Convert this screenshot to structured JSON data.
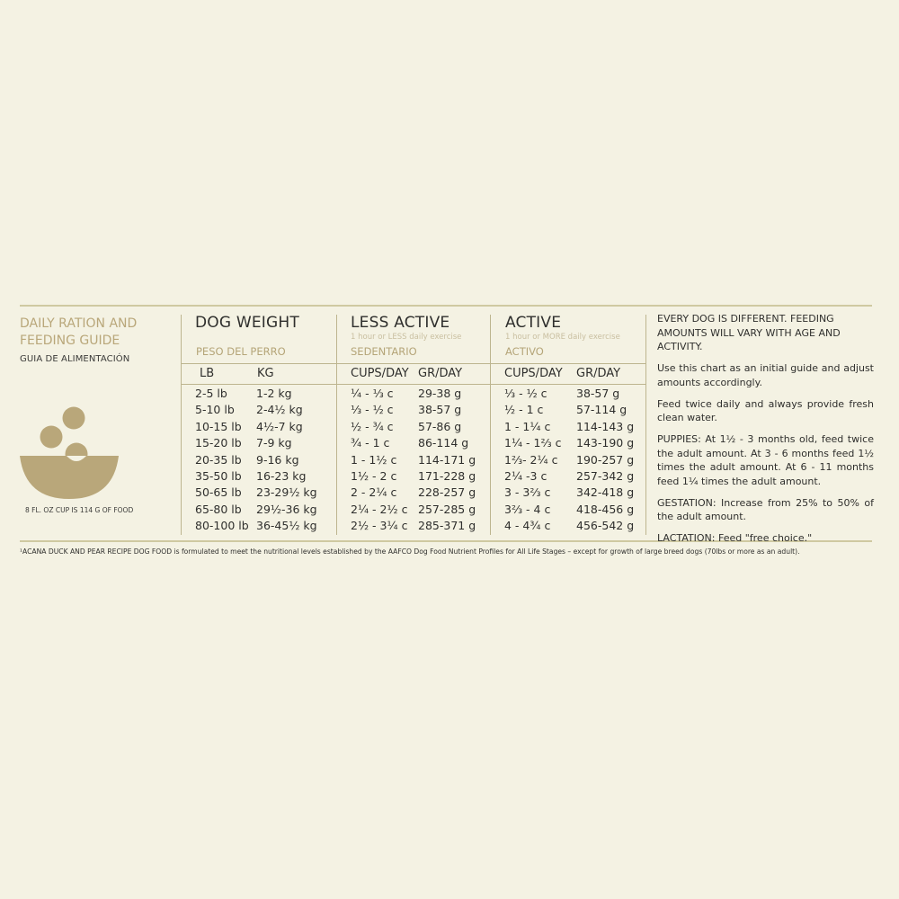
{
  "guide": {
    "title": "DAILY RATION AND FEEDING GUIDE",
    "subtitle": "GUIA DE ALIMENTACIÓN",
    "cup_note": "8 FL. OZ CUP IS 114 G OF FOOD",
    "bowl_icon": "food-bowl-icon",
    "accent_color": "#b9a77a"
  },
  "table": {
    "dog_weight": {
      "title": "DOG WEIGHT",
      "es": "PESO DEL PERRO",
      "unit_lb": "LB",
      "unit_kg": "KG"
    },
    "less_active": {
      "title": "LESS ACTIVE",
      "note": "1 hour or LESS daily exercise",
      "es": "SEDENTARIO",
      "unit_cups": "CUPS/DAY",
      "unit_gr": "GR/DAY"
    },
    "active": {
      "title": "ACTIVE",
      "note": "1 hour or MORE daily exercise",
      "es": "ACTIVO",
      "unit_cups": "CUPS/DAY",
      "unit_gr": "GR/DAY"
    },
    "rows": [
      {
        "lb": "2-5 lb",
        "kg": "1-2 kg",
        "la_cups": "¼ - ⅓ c",
        "la_gr": "29-38 g",
        "a_cups": "⅓ - ½ c",
        "a_gr": "38-57 g"
      },
      {
        "lb": "5-10 lb",
        "kg": "2-4½ kg",
        "la_cups": "⅓ - ½ c",
        "la_gr": "38-57 g",
        "a_cups": "½ - 1 c",
        "a_gr": "57-114 g"
      },
      {
        "lb": "10-15 lb",
        "kg": "4½-7 kg",
        "la_cups": "½ - ¾ c",
        "la_gr": "57-86 g",
        "a_cups": "1 - 1¼ c",
        "a_gr": "114-143 g"
      },
      {
        "lb": "15-20 lb",
        "kg": "7-9 kg",
        "la_cups": "¾ - 1 c",
        "la_gr": "86-114 g",
        "a_cups": "1¼ - 1⅔ c",
        "a_gr": "143-190 g"
      },
      {
        "lb": "20-35 lb",
        "kg": "9-16 kg",
        "la_cups": "1 - 1½ c",
        "la_gr": "114-171 g",
        "a_cups": "1⅔- 2¼ c",
        "a_gr": "190-257 g"
      },
      {
        "lb": "35-50 lb",
        "kg": "16-23 kg",
        "la_cups": "1½ - 2 c",
        "la_gr": "171-228 g",
        "a_cups": "2¼ -3 c",
        "a_gr": "257-342 g"
      },
      {
        "lb": "50-65 lb",
        "kg": "23-29½ kg",
        "la_cups": "2 - 2¼ c",
        "la_gr": "228-257 g",
        "a_cups": "3 - 3⅔ c",
        "a_gr": "342-418 g"
      },
      {
        "lb": "65-80 lb",
        "kg": "29½-36 kg",
        "la_cups": "2¼ - 2½ c",
        "la_gr": "257-285 g",
        "a_cups": "3⅔ - 4 c",
        "a_gr": "418-456 g"
      },
      {
        "lb": "80-100 lb",
        "kg": "36-45½ kg",
        "la_cups": "2½ - 3¼ c",
        "la_gr": "285-371 g",
        "a_cups": "4 - 4¾ c",
        "a_gr": "456-542 g"
      }
    ]
  },
  "notes": {
    "intro": "EVERY DOG IS DIFFERENT. FEEDING AMOUNTS WILL VARY WITH AGE AND ACTIVITY.",
    "chart": "Use this chart as an initial guide and adjust amounts accordingly.",
    "feed": "Feed twice daily and always provide fresh clean water.",
    "puppies": "PUPPIES: At 1½ - 3 months old, feed twice the adult amount. At 3 - 6 months feed 1½ times the adult amount. At 6 - 11 months feed 1¼ times the adult amount.",
    "gestation": "GESTATION: Increase from 25% to 50% of the adult amount.",
    "lactation": "LACTATION: Feed \"free choice.\""
  },
  "footnote": "¹ACANA DUCK AND PEAR RECIPE DOG FOOD is formulated to meet the nutritional levels established by the AAFCO Dog Food Nutrient Profiles for All Life Stages – except for growth of large breed dogs (70lbs or more as an adult)."
}
